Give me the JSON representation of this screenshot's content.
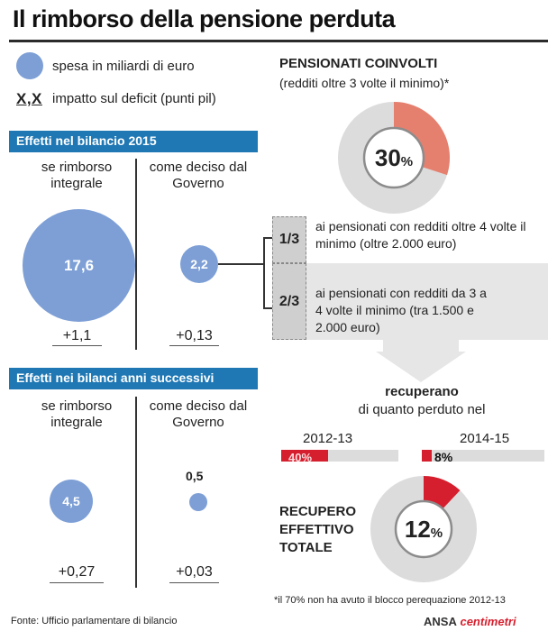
{
  "title": "Il rimborso della pensione perduta",
  "legend": {
    "spending": "spesa in miliardi di euro",
    "impact_symbol": "X,X",
    "impact": "impatto sul deficit (punti pil)"
  },
  "section_2015": {
    "heading": "Effetti nel bilancio 2015",
    "col_left": "se rimborso integrale",
    "col_right": "come deciso dal Governo",
    "left_value": "17,6",
    "left_impact": "+1,1",
    "right_value": "2,2",
    "right_impact": "+0,13"
  },
  "section_later": {
    "heading": "Effetti nei bilanci anni successivi",
    "col_left": "se rimborso integrale",
    "col_right": "come deciso dal Governo",
    "left_value": "4,5",
    "left_impact": "+0,27",
    "right_value": "0,5",
    "right_impact": "+0,03"
  },
  "pensioners": {
    "heading": "PENSIONATI COINVOLTI",
    "subheading": "(redditi oltre 3 volte il minimo)*",
    "share_value": "30",
    "share_unit": "%",
    "share_fraction": 0.3
  },
  "fractions": [
    {
      "label": "1/3",
      "text": "ai pensionati con redditi oltre 4 volte il minimo (oltre 2.000 euro)"
    },
    {
      "label": "2/3",
      "text": "ai pensionati con redditi da 3 a 4 volte il minimo (tra 1.500 e 2.000 euro)"
    }
  ],
  "recover": {
    "heading": "recuperano",
    "subheading": "di quanto perduto nel",
    "periods": [
      {
        "year": "2012-13",
        "label": "40%",
        "fraction": 0.4
      },
      {
        "year": "2014-15",
        "label": "8%",
        "fraction": 0.08
      }
    ]
  },
  "total": {
    "heading": "RECUPERO EFFETTIVO TOTALE",
    "value": "12",
    "unit": "%",
    "fraction": 0.12
  },
  "footnote": "*il 70% non ha avuto il blocco perequazione 2012-13",
  "source": "Fonte: Ufficio parlamentare di bilancio",
  "brand": {
    "ansa": "ANSA",
    "centimetri": "centimetri"
  },
  "colors": {
    "bubble": "#7d9fd6",
    "heading_bar": "#1f78b4",
    "accent_red": "#d61f2e",
    "salmon": "#e5806f",
    "grey": "#dcdcdc"
  }
}
